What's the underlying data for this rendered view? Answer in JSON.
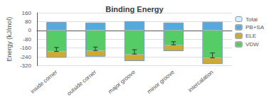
{
  "chart_data": {
    "type": "bar",
    "title": "Binding Energy",
    "ylabel": "Energy (kJ/mol)",
    "categories": [
      "inside corner",
      "outside corner",
      "major groove",
      "minor groove",
      "intercalation"
    ],
    "ylim": [
      -320,
      160
    ],
    "yticks": [
      -320,
      -240,
      -160,
      -80,
      0,
      80,
      160
    ],
    "grid": true,
    "stacked": true,
    "legend": "upper right",
    "series": [
      {
        "name": "VDW",
        "color": "#55cc66",
        "values": [
          -190,
          -185,
          -220,
          -135,
          -250
        ]
      },
      {
        "name": "ELE",
        "color": "#ccaa33",
        "values": [
          -55,
          -50,
          -55,
          -50,
          -52
        ]
      },
      {
        "name": "PB+SA",
        "color": "#55aadd",
        "values": [
          72,
          68,
          80,
          68,
          75
        ]
      },
      {
        "name": "Total",
        "type": "errorbar",
        "color": "#7799bb",
        "values": [
          -173,
          -167,
          -195,
          -117,
          -227
        ],
        "errors": [
          18,
          16,
          20,
          14,
          22
        ]
      }
    ]
  }
}
